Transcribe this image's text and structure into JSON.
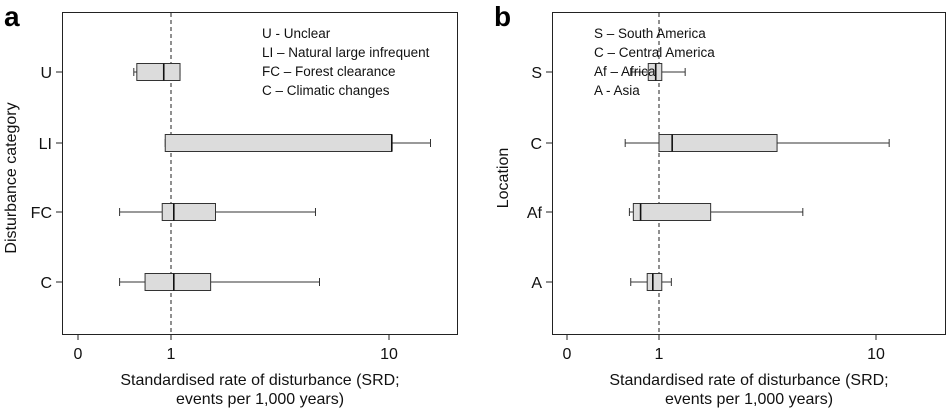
{
  "chart_data": [
    {
      "type": "box",
      "panel_label": "a",
      "orientation": "horizontal",
      "xlabel_lines": [
        "Standardised rate of disturbance (SRD;",
        "events per 1,000 years)"
      ],
      "ylabel": "Disturbance category",
      "x_ticks": [
        "0",
        "1",
        "10"
      ],
      "x_scale": "log-like",
      "reference_line": {
        "x": 1,
        "style": "dashed"
      },
      "legend": [
        "U - Unclear",
        "LI – Natural large infrequent",
        "FC – Forest clearance",
        "C – Climatic changes"
      ],
      "legend_position": "top-right",
      "categories": [
        "U",
        "LI",
        "FC",
        "C"
      ],
      "boxes": [
        {
          "category": "U",
          "whisker_low": 0.36,
          "q1": 0.4,
          "median": 0.85,
          "q3": 1.1,
          "whisker_high": 1.1
        },
        {
          "category": "LI",
          "whisker_low": 0.88,
          "q1": 0.88,
          "median": 10.3,
          "q3": 10.3,
          "whisker_high": 15.5
        },
        {
          "category": "FC",
          "whisker_low": 0.2,
          "q1": 0.82,
          "median": 1.03,
          "q3": 1.6,
          "whisker_high": 4.6
        },
        {
          "category": "C",
          "whisker_low": 0.2,
          "q1": 0.52,
          "median": 1.03,
          "q3": 1.52,
          "whisker_high": 4.8
        }
      ]
    },
    {
      "type": "box",
      "panel_label": "b",
      "orientation": "horizontal",
      "xlabel_lines": [
        "Standardised rate of disturbance (SRD;",
        "events per 1,000 years)"
      ],
      "ylabel": "Location",
      "x_ticks": [
        "0",
        "1",
        "10"
      ],
      "x_scale": "log-like",
      "reference_line": {
        "x": 1,
        "style": "dashed"
      },
      "legend": [
        "S – South America",
        "C – Central America",
        "Af – Africa",
        "A - Asia"
      ],
      "legend_position": "top-right",
      "categories": [
        "S",
        "C",
        "Af",
        "A"
      ],
      "boxes": [
        {
          "category": "S",
          "whisker_low": 0.48,
          "q1": 0.78,
          "median": 0.93,
          "q3": 1.03,
          "whisker_high": 1.32
        },
        {
          "category": "C",
          "whisker_low": 0.4,
          "q1": 1.0,
          "median": 1.15,
          "q3": 3.5,
          "whisker_high": 11.5
        },
        {
          "category": "Af",
          "whisker_low": 0.46,
          "q1": 0.52,
          "median": 0.64,
          "q3": 1.73,
          "whisker_high": 4.6
        },
        {
          "category": "A",
          "whisker_low": 0.48,
          "q1": 0.76,
          "median": 0.87,
          "q3": 1.03,
          "whisker_high": 1.14
        }
      ]
    }
  ]
}
